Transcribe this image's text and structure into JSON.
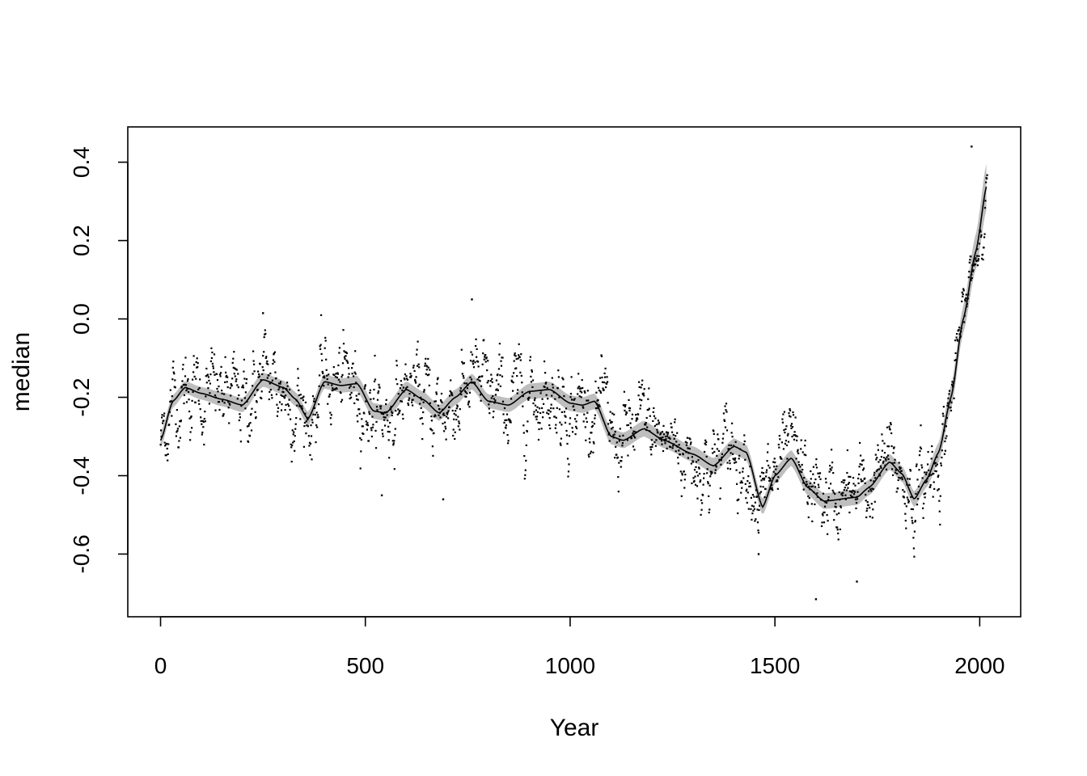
{
  "chart_data": {
    "type": "scatter",
    "title": "",
    "xlabel": "Year",
    "ylabel": "median",
    "xlim": [
      -80,
      2100
    ],
    "ylim": [
      -0.76,
      0.49
    ],
    "x_ticks": [
      0,
      500,
      1000,
      1500,
      2000
    ],
    "x_tick_labels": [
      "0",
      "500",
      "1000",
      "1500",
      "2000"
    ],
    "y_ticks": [
      -0.6,
      -0.4,
      -0.2,
      0.0,
      0.2,
      0.4
    ],
    "y_tick_labels": [
      "-0.6",
      "-0.4",
      "-0.2",
      "0.0",
      "0.2",
      "0.4"
    ],
    "grid": false,
    "legend": "none",
    "colors": {
      "points": "#000000",
      "smooth": "#000000",
      "band": "#bebebe"
    },
    "smooth_curve": {
      "x": [
        0,
        30,
        60,
        100,
        150,
        200,
        250,
        300,
        330,
        360,
        400,
        440,
        480,
        520,
        550,
        600,
        640,
        680,
        720,
        760,
        800,
        850,
        900,
        950,
        1000,
        1030,
        1060,
        1100,
        1130,
        1180,
        1230,
        1300,
        1350,
        1400,
        1430,
        1470,
        1500,
        1540,
        1580,
        1620,
        1700,
        1730,
        1780,
        1810,
        1840,
        1870,
        1900,
        1930,
        1960,
        1990,
        2018
      ],
      "y": [
        -0.31,
        -0.21,
        -0.175,
        -0.19,
        -0.205,
        -0.22,
        -0.155,
        -0.175,
        -0.205,
        -0.255,
        -0.16,
        -0.17,
        -0.165,
        -0.235,
        -0.24,
        -0.18,
        -0.205,
        -0.24,
        -0.2,
        -0.16,
        -0.21,
        -0.22,
        -0.185,
        -0.18,
        -0.215,
        -0.22,
        -0.21,
        -0.3,
        -0.31,
        -0.28,
        -0.31,
        -0.345,
        -0.375,
        -0.325,
        -0.34,
        -0.48,
        -0.4,
        -0.355,
        -0.43,
        -0.465,
        -0.455,
        -0.43,
        -0.365,
        -0.395,
        -0.46,
        -0.41,
        -0.34,
        -0.2,
        0.0,
        0.17,
        0.345
      ]
    },
    "band_halfwidth": [
      0.02,
      0.016,
      0.016,
      0.016,
      0.018,
      0.018,
      0.018,
      0.018,
      0.018,
      0.018,
      0.018,
      0.018,
      0.02,
      0.02,
      0.02,
      0.02,
      0.02,
      0.02,
      0.02,
      0.02,
      0.018,
      0.018,
      0.02,
      0.02,
      0.02,
      0.02,
      0.02,
      0.02,
      0.02,
      0.02,
      0.02,
      0.02,
      0.02,
      0.02,
      0.02,
      0.02,
      0.02,
      0.02,
      0.02,
      0.02,
      0.02,
      0.02,
      0.02,
      0.02,
      0.02,
      0.02,
      0.025,
      0.03,
      0.035,
      0.045,
      0.06
    ],
    "points": {
      "x_start": 0,
      "x_step": 1,
      "count": 2019,
      "noise_sd": 0.06,
      "annotated_extremes": [
        {
          "x": 1980,
          "y": 0.44
        },
        {
          "x": 760,
          "y": 0.05
        },
        {
          "x": 250,
          "y": 0.015
        },
        {
          "x": 1600,
          "y": -0.715
        },
        {
          "x": 1700,
          "y": -0.67
        },
        {
          "x": 1460,
          "y": -0.6
        },
        {
          "x": 690,
          "y": -0.46
        },
        {
          "x": 540,
          "y": -0.45
        }
      ]
    }
  }
}
